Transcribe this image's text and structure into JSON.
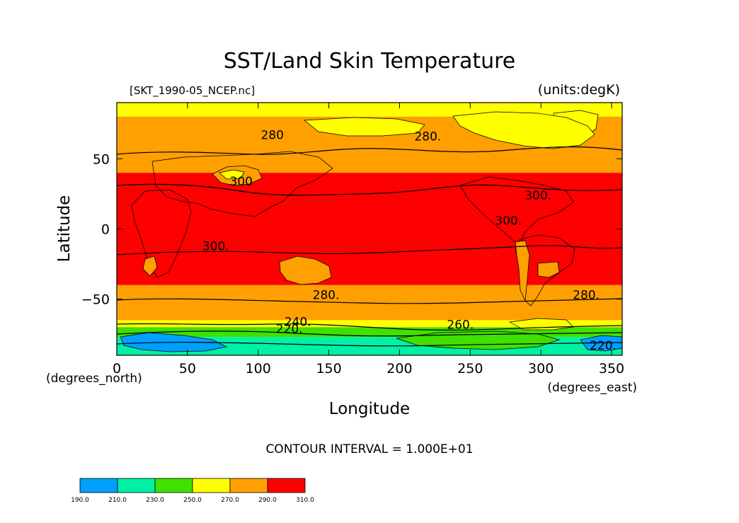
{
  "chart_data": {
    "type": "contour-map",
    "title": "SST/Land Skin Temperature",
    "subtitle_left": "[SKT_1990-05_NCEP.nc]",
    "subtitle_right": "(units:degK)",
    "xlabel": "Longitude",
    "ylabel": "Latitude",
    "x_units": "(degrees_east)",
    "y_units": "(degrees_north)",
    "x_range": [
      0,
      357.5
    ],
    "y_range": [
      -90,
      90
    ],
    "x_ticks": [
      "0",
      "50",
      "100",
      "150",
      "200",
      "250",
      "300",
      "350"
    ],
    "x_tick_values": [
      0,
      50,
      100,
      150,
      200,
      250,
      300,
      350
    ],
    "y_ticks": [
      "50",
      "0",
      "−50"
    ],
    "y_tick_values": [
      50,
      0,
      -50
    ],
    "contour_interval": "CONTOUR INTERVAL = 1.000E+01",
    "levels": [
      190,
      210,
      230,
      250,
      270,
      290,
      310
    ],
    "level_labels": [
      "190.0",
      "210.0",
      "230.0",
      "250.0",
      "270.0",
      "290.0",
      "310.0"
    ],
    "colors": [
      "#00a0ff",
      "#00f0a8",
      "#40e000",
      "#ffff00",
      "#ffa000",
      "#ff0000"
    ],
    "zonal_bands": [
      {
        "lat_top": 90,
        "lat_bottom": 80,
        "value": 260
      },
      {
        "lat_top": 80,
        "lat_bottom": 40,
        "value": 280
      },
      {
        "lat_top": 40,
        "lat_bottom": -40,
        "value": 300
      },
      {
        "lat_top": -40,
        "lat_bottom": -65,
        "value": 280
      },
      {
        "lat_top": -65,
        "lat_bottom": -70,
        "value": 260
      },
      {
        "lat_top": -70,
        "lat_bottom": -77,
        "value": 240
      },
      {
        "lat_top": -77,
        "lat_bottom": -90,
        "value": 220
      }
    ],
    "contour_labels": [
      {
        "text": "280",
        "lon": 110,
        "lat": 64
      },
      {
        "text": "280.",
        "lon": 220,
        "lat": 63
      },
      {
        "text": "300",
        "lon": 88,
        "lat": 31
      },
      {
        "text": "300.",
        "lon": 298,
        "lat": 21
      },
      {
        "text": "300.",
        "lon": 277,
        "lat": 3
      },
      {
        "text": "300.",
        "lon": 70,
        "lat": -15
      },
      {
        "text": "280.",
        "lon": 148,
        "lat": -50
      },
      {
        "text": "280.",
        "lon": 332,
        "lat": -50
      },
      {
        "text": "240.",
        "lon": 128,
        "lat": -69
      },
      {
        "text": "220.",
        "lon": 122,
        "lat": -74
      },
      {
        "text": "260.",
        "lon": 243,
        "lat": -71
      },
      {
        "text": "220.",
        "lon": 344,
        "lat": -86
      }
    ]
  }
}
